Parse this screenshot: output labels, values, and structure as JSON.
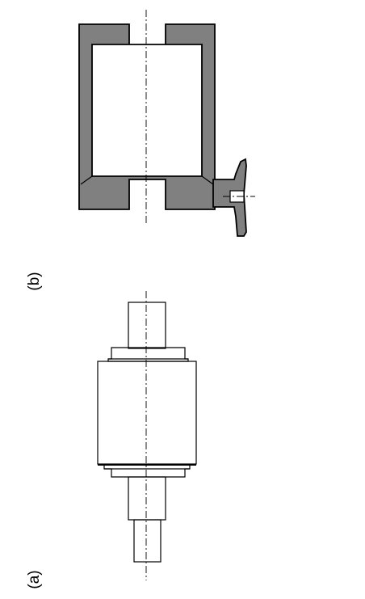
{
  "figure": {
    "labels": {
      "a": "(a)",
      "b": "(b)"
    },
    "colors": {
      "section_fill": "#808080",
      "outline": "#000000",
      "background": "#ffffff"
    }
  }
}
